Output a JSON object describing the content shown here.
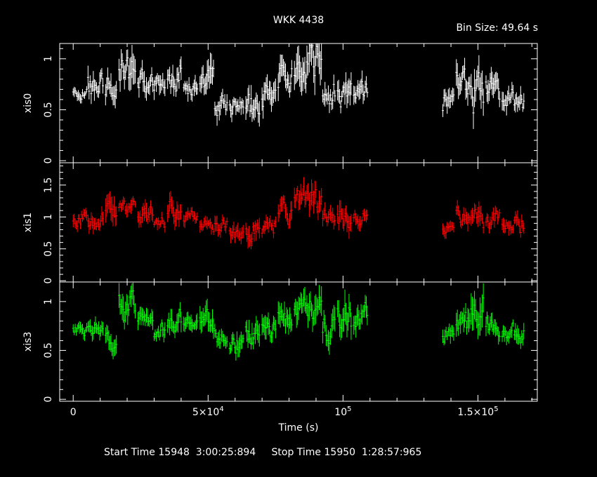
{
  "chart_data": {
    "type": "scatter",
    "title": "WKK 4438",
    "bin_size_label": "Bin Size: 49.64 s",
    "xlabel": "Time (s)",
    "xlim": [
      -5000,
      172000
    ],
    "x_ticks": [
      {
        "value": 0,
        "label": "0",
        "sup": ""
      },
      {
        "value": 50000,
        "label": "5×10",
        "sup": "4"
      },
      {
        "value": 100000,
        "label": "10",
        "sup": "5"
      },
      {
        "value": 150000,
        "label": "1.5×10",
        "sup": "5"
      }
    ],
    "x_minor_step": 10000,
    "panels": [
      {
        "name": "xis0",
        "color": "#ffffff",
        "ylim": [
          -0.02,
          1.15
        ],
        "y_ticks": [
          {
            "value": 0,
            "label": "0"
          },
          {
            "value": 0.5,
            "label": "0.5"
          },
          {
            "value": 1,
            "label": "1"
          }
        ],
        "segments": [
          {
            "start": 0,
            "end": 5000,
            "mean": 0.66,
            "amp": 0.06
          },
          {
            "start": 5500,
            "end": 11000,
            "mean": 0.72,
            "amp": 0.14
          },
          {
            "start": 12000,
            "end": 16000,
            "mean": 0.68,
            "amp": 0.15
          },
          {
            "start": 17000,
            "end": 23000,
            "mean": 0.95,
            "amp": 0.2
          },
          {
            "start": 24000,
            "end": 29500,
            "mean": 0.78,
            "amp": 0.14
          },
          {
            "start": 30000,
            "end": 34000,
            "mean": 0.72,
            "amp": 0.12
          },
          {
            "start": 35000,
            "end": 40000,
            "mean": 0.82,
            "amp": 0.15
          },
          {
            "start": 41000,
            "end": 46000,
            "mean": 0.7,
            "amp": 0.1
          },
          {
            "start": 47000,
            "end": 52000,
            "mean": 0.88,
            "amp": 0.18
          },
          {
            "start": 52500,
            "end": 57000,
            "mean": 0.56,
            "amp": 0.12
          },
          {
            "start": 58000,
            "end": 63000,
            "mean": 0.52,
            "amp": 0.1
          },
          {
            "start": 64000,
            "end": 69000,
            "mean": 0.5,
            "amp": 0.16
          },
          {
            "start": 70000,
            "end": 75000,
            "mean": 0.6,
            "amp": 0.15
          },
          {
            "start": 76000,
            "end": 81000,
            "mean": 0.82,
            "amp": 0.16
          },
          {
            "start": 82000,
            "end": 87000,
            "mean": 0.9,
            "amp": 0.2
          },
          {
            "start": 87500,
            "end": 92000,
            "mean": 0.95,
            "amp": 0.25
          },
          {
            "start": 92500,
            "end": 97000,
            "mean": 0.68,
            "amp": 0.15
          },
          {
            "start": 98000,
            "end": 103000,
            "mean": 0.65,
            "amp": 0.15
          },
          {
            "start": 104000,
            "end": 109000,
            "mean": 0.7,
            "amp": 0.13
          },
          {
            "start": 137000,
            "end": 141000,
            "mean": 0.58,
            "amp": 0.12
          },
          {
            "start": 142000,
            "end": 147000,
            "mean": 0.75,
            "amp": 0.17
          },
          {
            "start": 147500,
            "end": 152000,
            "mean": 0.65,
            "amp": 0.25
          },
          {
            "start": 153000,
            "end": 158000,
            "mean": 0.72,
            "amp": 0.14
          },
          {
            "start": 159000,
            "end": 163000,
            "mean": 0.62,
            "amp": 0.12
          },
          {
            "start": 163500,
            "end": 167000,
            "mean": 0.62,
            "amp": 0.12
          }
        ]
      },
      {
        "name": "xis1",
        "color": "#ff0000",
        "ylim": [
          -0.02,
          1.85
        ],
        "y_ticks": [
          {
            "value": 0,
            "label": "0"
          },
          {
            "value": 0.5,
            "label": "0.5"
          },
          {
            "value": 1,
            "label": "1"
          },
          {
            "value": 1.5,
            "label": "1.5"
          }
        ],
        "segments": [
          {
            "start": 0,
            "end": 5000,
            "mean": 1.0,
            "amp": 0.12
          },
          {
            "start": 5500,
            "end": 11000,
            "mean": 1.0,
            "amp": 0.16
          },
          {
            "start": 12000,
            "end": 16000,
            "mean": 1.1,
            "amp": 0.25
          },
          {
            "start": 17000,
            "end": 23000,
            "mean": 1.2,
            "amp": 0.14
          },
          {
            "start": 24000,
            "end": 29500,
            "mean": 1.05,
            "amp": 0.18
          },
          {
            "start": 30000,
            "end": 34000,
            "mean": 0.9,
            "amp": 0.12
          },
          {
            "start": 35000,
            "end": 40000,
            "mean": 1.05,
            "amp": 0.2
          },
          {
            "start": 41000,
            "end": 46000,
            "mean": 1.0,
            "amp": 0.12
          },
          {
            "start": 47000,
            "end": 52000,
            "mean": 0.9,
            "amp": 0.12
          },
          {
            "start": 52500,
            "end": 57000,
            "mean": 0.88,
            "amp": 0.15
          },
          {
            "start": 58000,
            "end": 63000,
            "mean": 0.75,
            "amp": 0.15
          },
          {
            "start": 64000,
            "end": 69000,
            "mean": 0.82,
            "amp": 0.2
          },
          {
            "start": 70000,
            "end": 75000,
            "mean": 0.8,
            "amp": 0.15
          },
          {
            "start": 76000,
            "end": 81000,
            "mean": 1.1,
            "amp": 0.18
          },
          {
            "start": 82000,
            "end": 87000,
            "mean": 1.25,
            "amp": 0.2
          },
          {
            "start": 87500,
            "end": 92000,
            "mean": 1.15,
            "amp": 0.25
          },
          {
            "start": 92500,
            "end": 97000,
            "mean": 0.98,
            "amp": 0.15
          },
          {
            "start": 98000,
            "end": 103000,
            "mean": 1.0,
            "amp": 0.25
          },
          {
            "start": 104000,
            "end": 109000,
            "mean": 0.95,
            "amp": 0.15
          },
          {
            "start": 137000,
            "end": 141000,
            "mean": 0.82,
            "amp": 0.12
          },
          {
            "start": 142000,
            "end": 147000,
            "mean": 1.0,
            "amp": 0.18
          },
          {
            "start": 147500,
            "end": 152000,
            "mean": 0.95,
            "amp": 0.2
          },
          {
            "start": 153000,
            "end": 158000,
            "mean": 0.95,
            "amp": 0.15
          },
          {
            "start": 159000,
            "end": 163000,
            "mean": 0.88,
            "amp": 0.14
          },
          {
            "start": 163500,
            "end": 167000,
            "mean": 0.88,
            "amp": 0.14
          }
        ]
      },
      {
        "name": "xis3",
        "color": "#00ff00",
        "ylim": [
          -0.02,
          1.2
        ],
        "y_ticks": [
          {
            "value": 0,
            "label": "0"
          },
          {
            "value": 0.5,
            "label": "0.5"
          },
          {
            "value": 1,
            "label": "1"
          }
        ],
        "segments": [
          {
            "start": 0,
            "end": 5000,
            "mean": 0.72,
            "amp": 0.08
          },
          {
            "start": 5500,
            "end": 11000,
            "mean": 0.72,
            "amp": 0.1
          },
          {
            "start": 12000,
            "end": 16000,
            "mean": 0.62,
            "amp": 0.12
          },
          {
            "start": 17000,
            "end": 23000,
            "mean": 0.98,
            "amp": 0.18
          },
          {
            "start": 24000,
            "end": 29500,
            "mean": 0.85,
            "amp": 0.12
          },
          {
            "start": 30000,
            "end": 34000,
            "mean": 0.72,
            "amp": 0.1
          },
          {
            "start": 35000,
            "end": 40000,
            "mean": 0.8,
            "amp": 0.14
          },
          {
            "start": 41000,
            "end": 46000,
            "mean": 0.72,
            "amp": 0.1
          },
          {
            "start": 47000,
            "end": 52000,
            "mean": 0.82,
            "amp": 0.15
          },
          {
            "start": 52500,
            "end": 57000,
            "mean": 0.65,
            "amp": 0.12
          },
          {
            "start": 58000,
            "end": 63000,
            "mean": 0.55,
            "amp": 0.12
          },
          {
            "start": 64000,
            "end": 69000,
            "mean": 0.65,
            "amp": 0.15
          },
          {
            "start": 70000,
            "end": 75000,
            "mean": 0.68,
            "amp": 0.15
          },
          {
            "start": 76000,
            "end": 81000,
            "mean": 0.8,
            "amp": 0.15
          },
          {
            "start": 82000,
            "end": 87000,
            "mean": 0.92,
            "amp": 0.16
          },
          {
            "start": 87500,
            "end": 92000,
            "mean": 0.95,
            "amp": 0.2
          },
          {
            "start": 92500,
            "end": 97000,
            "mean": 0.75,
            "amp": 0.15
          },
          {
            "start": 98000,
            "end": 103000,
            "mean": 0.82,
            "amp": 0.2
          },
          {
            "start": 104000,
            "end": 109000,
            "mean": 0.85,
            "amp": 0.14
          },
          {
            "start": 137000,
            "end": 141000,
            "mean": 0.68,
            "amp": 0.1
          },
          {
            "start": 142000,
            "end": 147000,
            "mean": 0.78,
            "amp": 0.15
          },
          {
            "start": 147500,
            "end": 152000,
            "mean": 0.8,
            "amp": 0.25
          },
          {
            "start": 153000,
            "end": 158000,
            "mean": 0.78,
            "amp": 0.12
          },
          {
            "start": 159000,
            "end": 163000,
            "mean": 0.7,
            "amp": 0.1
          },
          {
            "start": 163500,
            "end": 167000,
            "mean": 0.7,
            "amp": 0.12
          }
        ]
      }
    ]
  },
  "footer": {
    "start_label": "Start Time",
    "start_value": "15948  3:00:25:894",
    "stop_label": "Stop Time",
    "stop_value": "15950  1:28:57:965"
  }
}
